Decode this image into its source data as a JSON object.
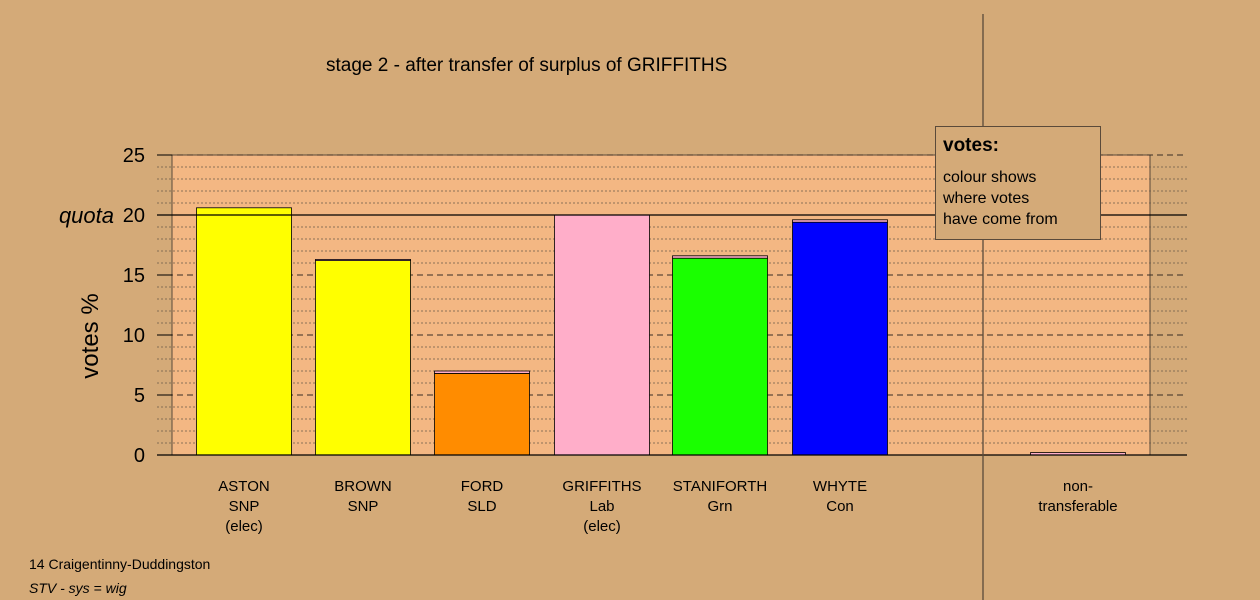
{
  "title": "stage 2 - after transfer of surplus of GRIFFITHS",
  "legend": {
    "title": "votes:",
    "lines": [
      "colour shows",
      "where votes",
      "have come from"
    ]
  },
  "footer": {
    "constituency": "14 Craigentinny-Duddingston",
    "system": "STV - sys = wig"
  },
  "chart_data": {
    "type": "bar",
    "ylabel": "votes %",
    "ylim": [
      0,
      25
    ],
    "yticks": [
      "0",
      "5",
      "10",
      "15",
      "20",
      "25"
    ],
    "quota": {
      "label": "quota",
      "value": 20
    },
    "grid": true,
    "legend_position": "top-right",
    "categories": [
      {
        "lines": [
          "ASTON",
          "SNP",
          "(elec)"
        ],
        "value": 20.6,
        "color": "#ffff00",
        "transfer": 0.0
      },
      {
        "lines": [
          "BROWN",
          "SNP"
        ],
        "value": 16.3,
        "color": "#ffff00",
        "transfer": 0.1
      },
      {
        "lines": [
          "FORD",
          "SLD"
        ],
        "value": 7.0,
        "color": "#ff8c00",
        "transfer": 0.2
      },
      {
        "lines": [
          "GRIFFITHS",
          "Lab",
          "(elec)"
        ],
        "value": 20.0,
        "color": "#ffaec9",
        "transfer": 0.0
      },
      {
        "lines": [
          "STANIFORTH",
          "Grn"
        ],
        "value": 16.6,
        "color": "#1aff00",
        "transfer": 0.2
      },
      {
        "lines": [
          "WHYTE",
          "Con"
        ],
        "value": 19.6,
        "color": "#0000ff",
        "transfer": 0.2
      },
      {
        "lines": [
          "non-",
          "transferable"
        ],
        "value": 0.2,
        "color": "#ffaec9",
        "transfer": 0.2
      }
    ]
  }
}
